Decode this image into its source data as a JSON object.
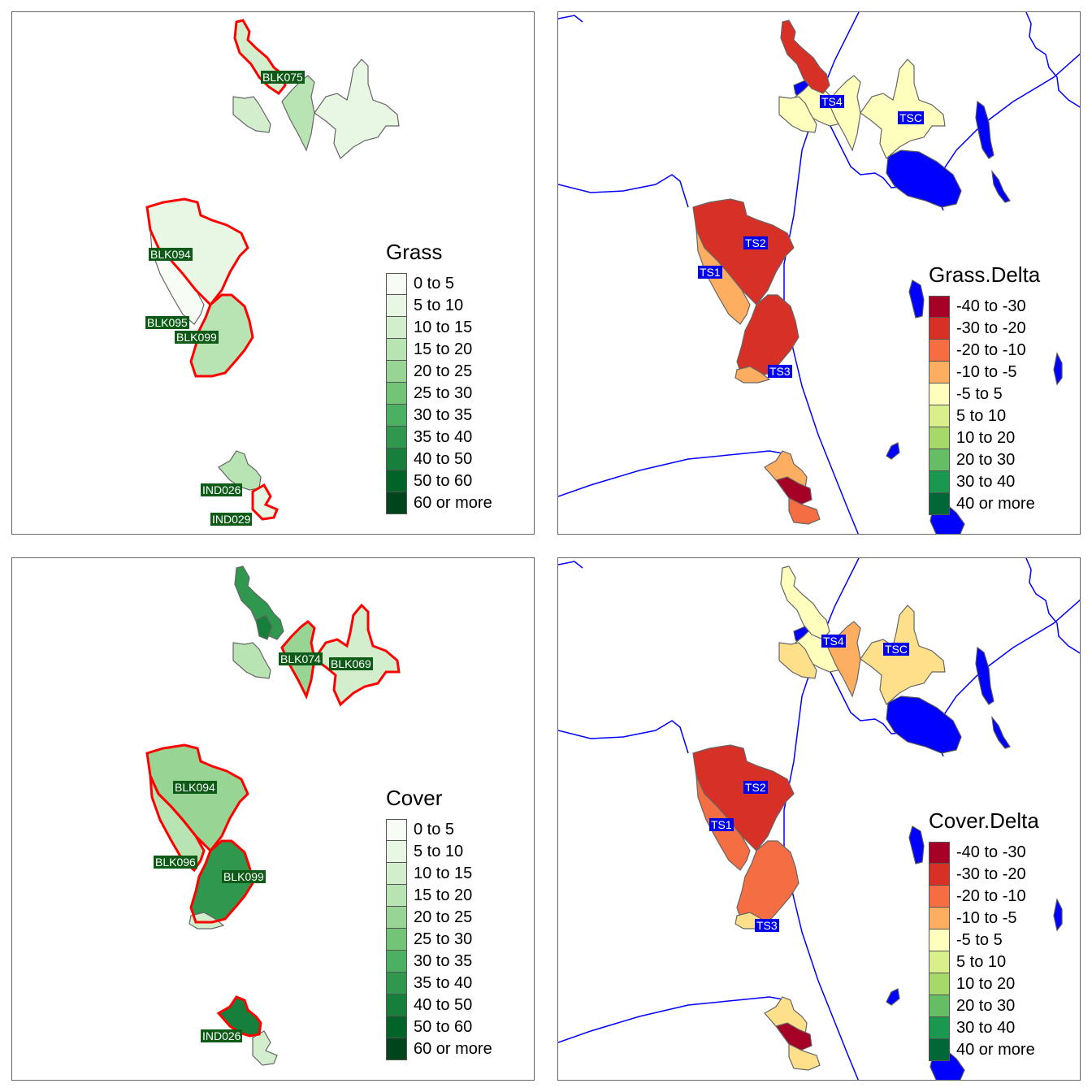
{
  "panels": {
    "grass": {
      "legend_title": "Grass",
      "labels": [
        "BLK075",
        "BLK094",
        "BLK095",
        "BLK099",
        "IND026",
        "IND029"
      ]
    },
    "grass_delta": {
      "legend_title": "Grass.Delta",
      "labels": [
        "TS4",
        "TSC",
        "TS2",
        "TS1",
        "TS3"
      ]
    },
    "cover": {
      "legend_title": "Cover",
      "labels": [
        "BLK074",
        "BLK069",
        "BLK094",
        "BLK096",
        "BLK099",
        "IND026"
      ]
    },
    "cover_delta": {
      "legend_title": "Cover.Delta",
      "labels": [
        "TS4",
        "TSC",
        "TS2",
        "TS1",
        "TS3"
      ]
    }
  },
  "legend_green": {
    "classes": [
      "0 to 5",
      "5 to 10",
      "10 to 15",
      "15 to 20",
      "20 to 25",
      "25 to 30",
      "30 to 35",
      "35 to 40",
      "40 to 50",
      "50 to 60",
      "60 or more"
    ],
    "colors": [
      "#f7fcf5",
      "#e8f6e4",
      "#d3eecd",
      "#b8e3b2",
      "#98d594",
      "#73c476",
      "#4bb062",
      "#2f974e",
      "#157f3b",
      "#006428",
      "#00441b"
    ]
  },
  "legend_delta": {
    "classes": [
      "-40 to -30",
      "-30 to -20",
      "-20 to -10",
      "-10 to -5",
      "-5 to 5",
      "5 to 10",
      "10 to 20",
      "20 to 30",
      "30 to 40",
      "40 or more"
    ],
    "colors": [
      "#a50026",
      "#d73027",
      "#f46d43",
      "#fdae61",
      "#fee08b",
      "#ffffbf",
      "#d9ef8b",
      "#a6d96a",
      "#66bd63",
      "#1a9850"
    ]
  },
  "legend_delta_display_colors": [
    "#a50026",
    "#d73027",
    "#f46d43",
    "#fdae61",
    "#fefebd",
    "#d9ef8b",
    "#a6d96a",
    "#66bd63",
    "#1a9850",
    "#006837"
  ],
  "colors": {
    "highlight_outline": "#ff0000",
    "water": "#0000ff",
    "label_green": "#0e5a17",
    "label_blue": "#0000ee"
  }
}
